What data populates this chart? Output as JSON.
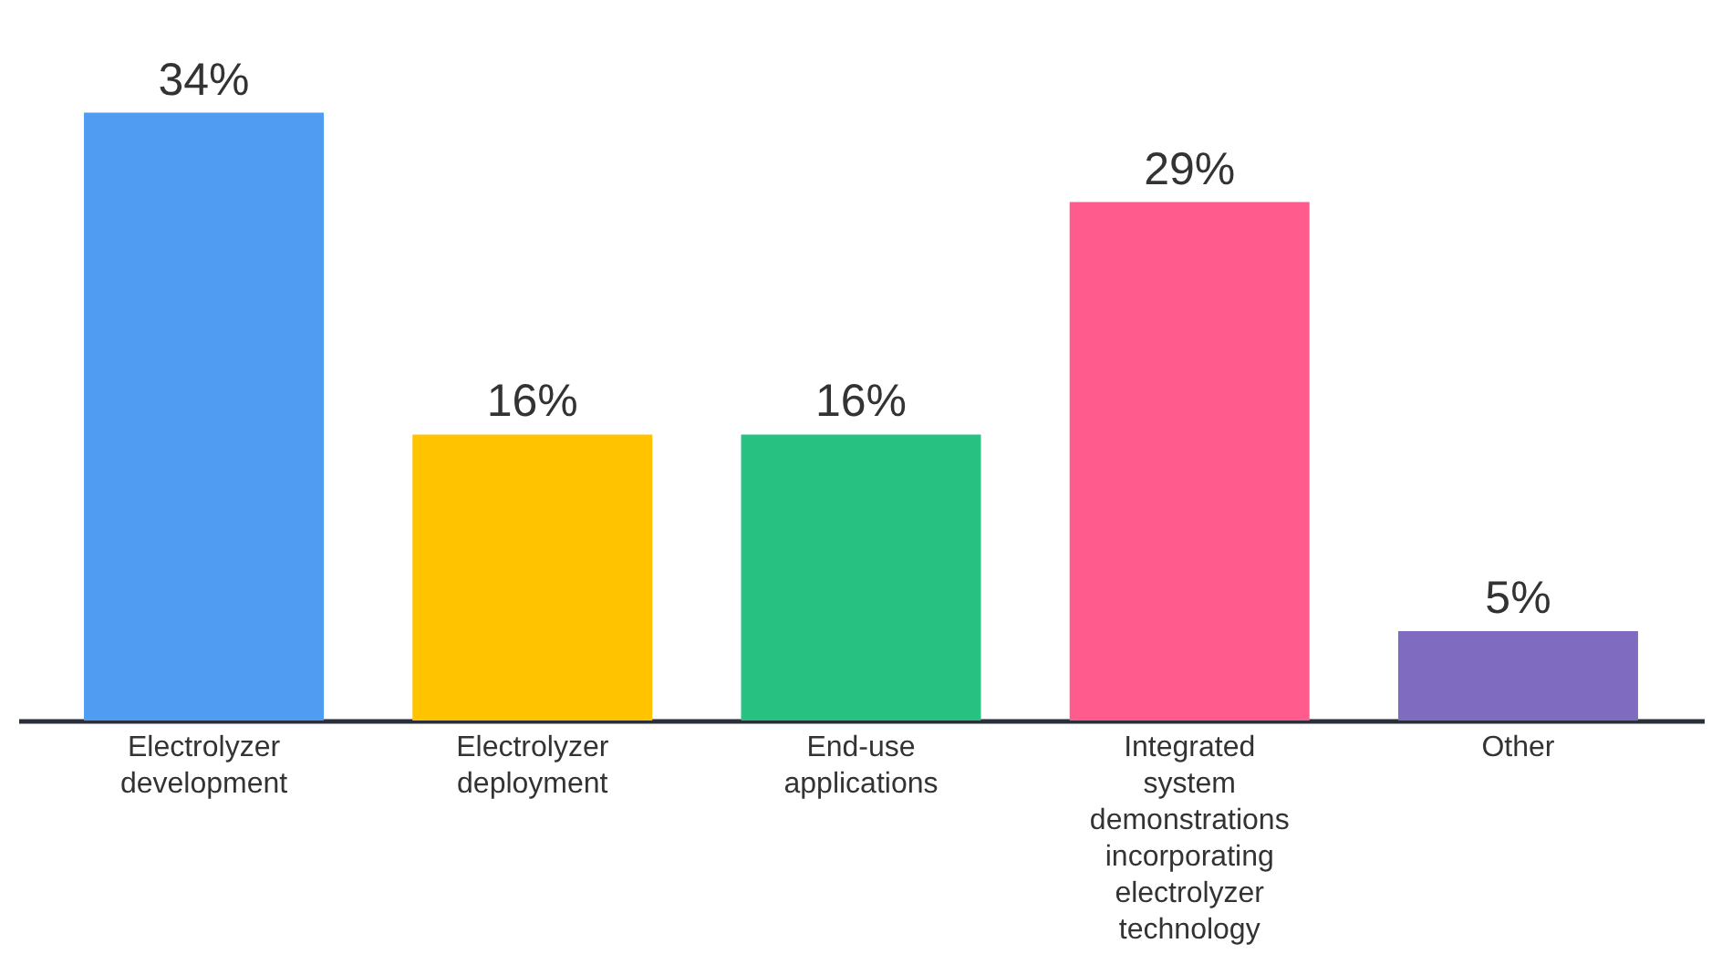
{
  "chart_data": {
    "type": "bar",
    "categories": [
      "Electrolyzer development",
      "Electrolyzer deployment",
      "End-use applications",
      "Integrated system demonstrations incorporating electrolyzer technology",
      "Other"
    ],
    "values": [
      34,
      16,
      16,
      29,
      5
    ],
    "colors": [
      "#4f9cf2",
      "#ffc300",
      "#27c281",
      "#ff5c8d",
      "#7f6bc0"
    ],
    "value_labels": [
      "34%",
      "16%",
      "16%",
      "29%",
      "5%"
    ]
  }
}
